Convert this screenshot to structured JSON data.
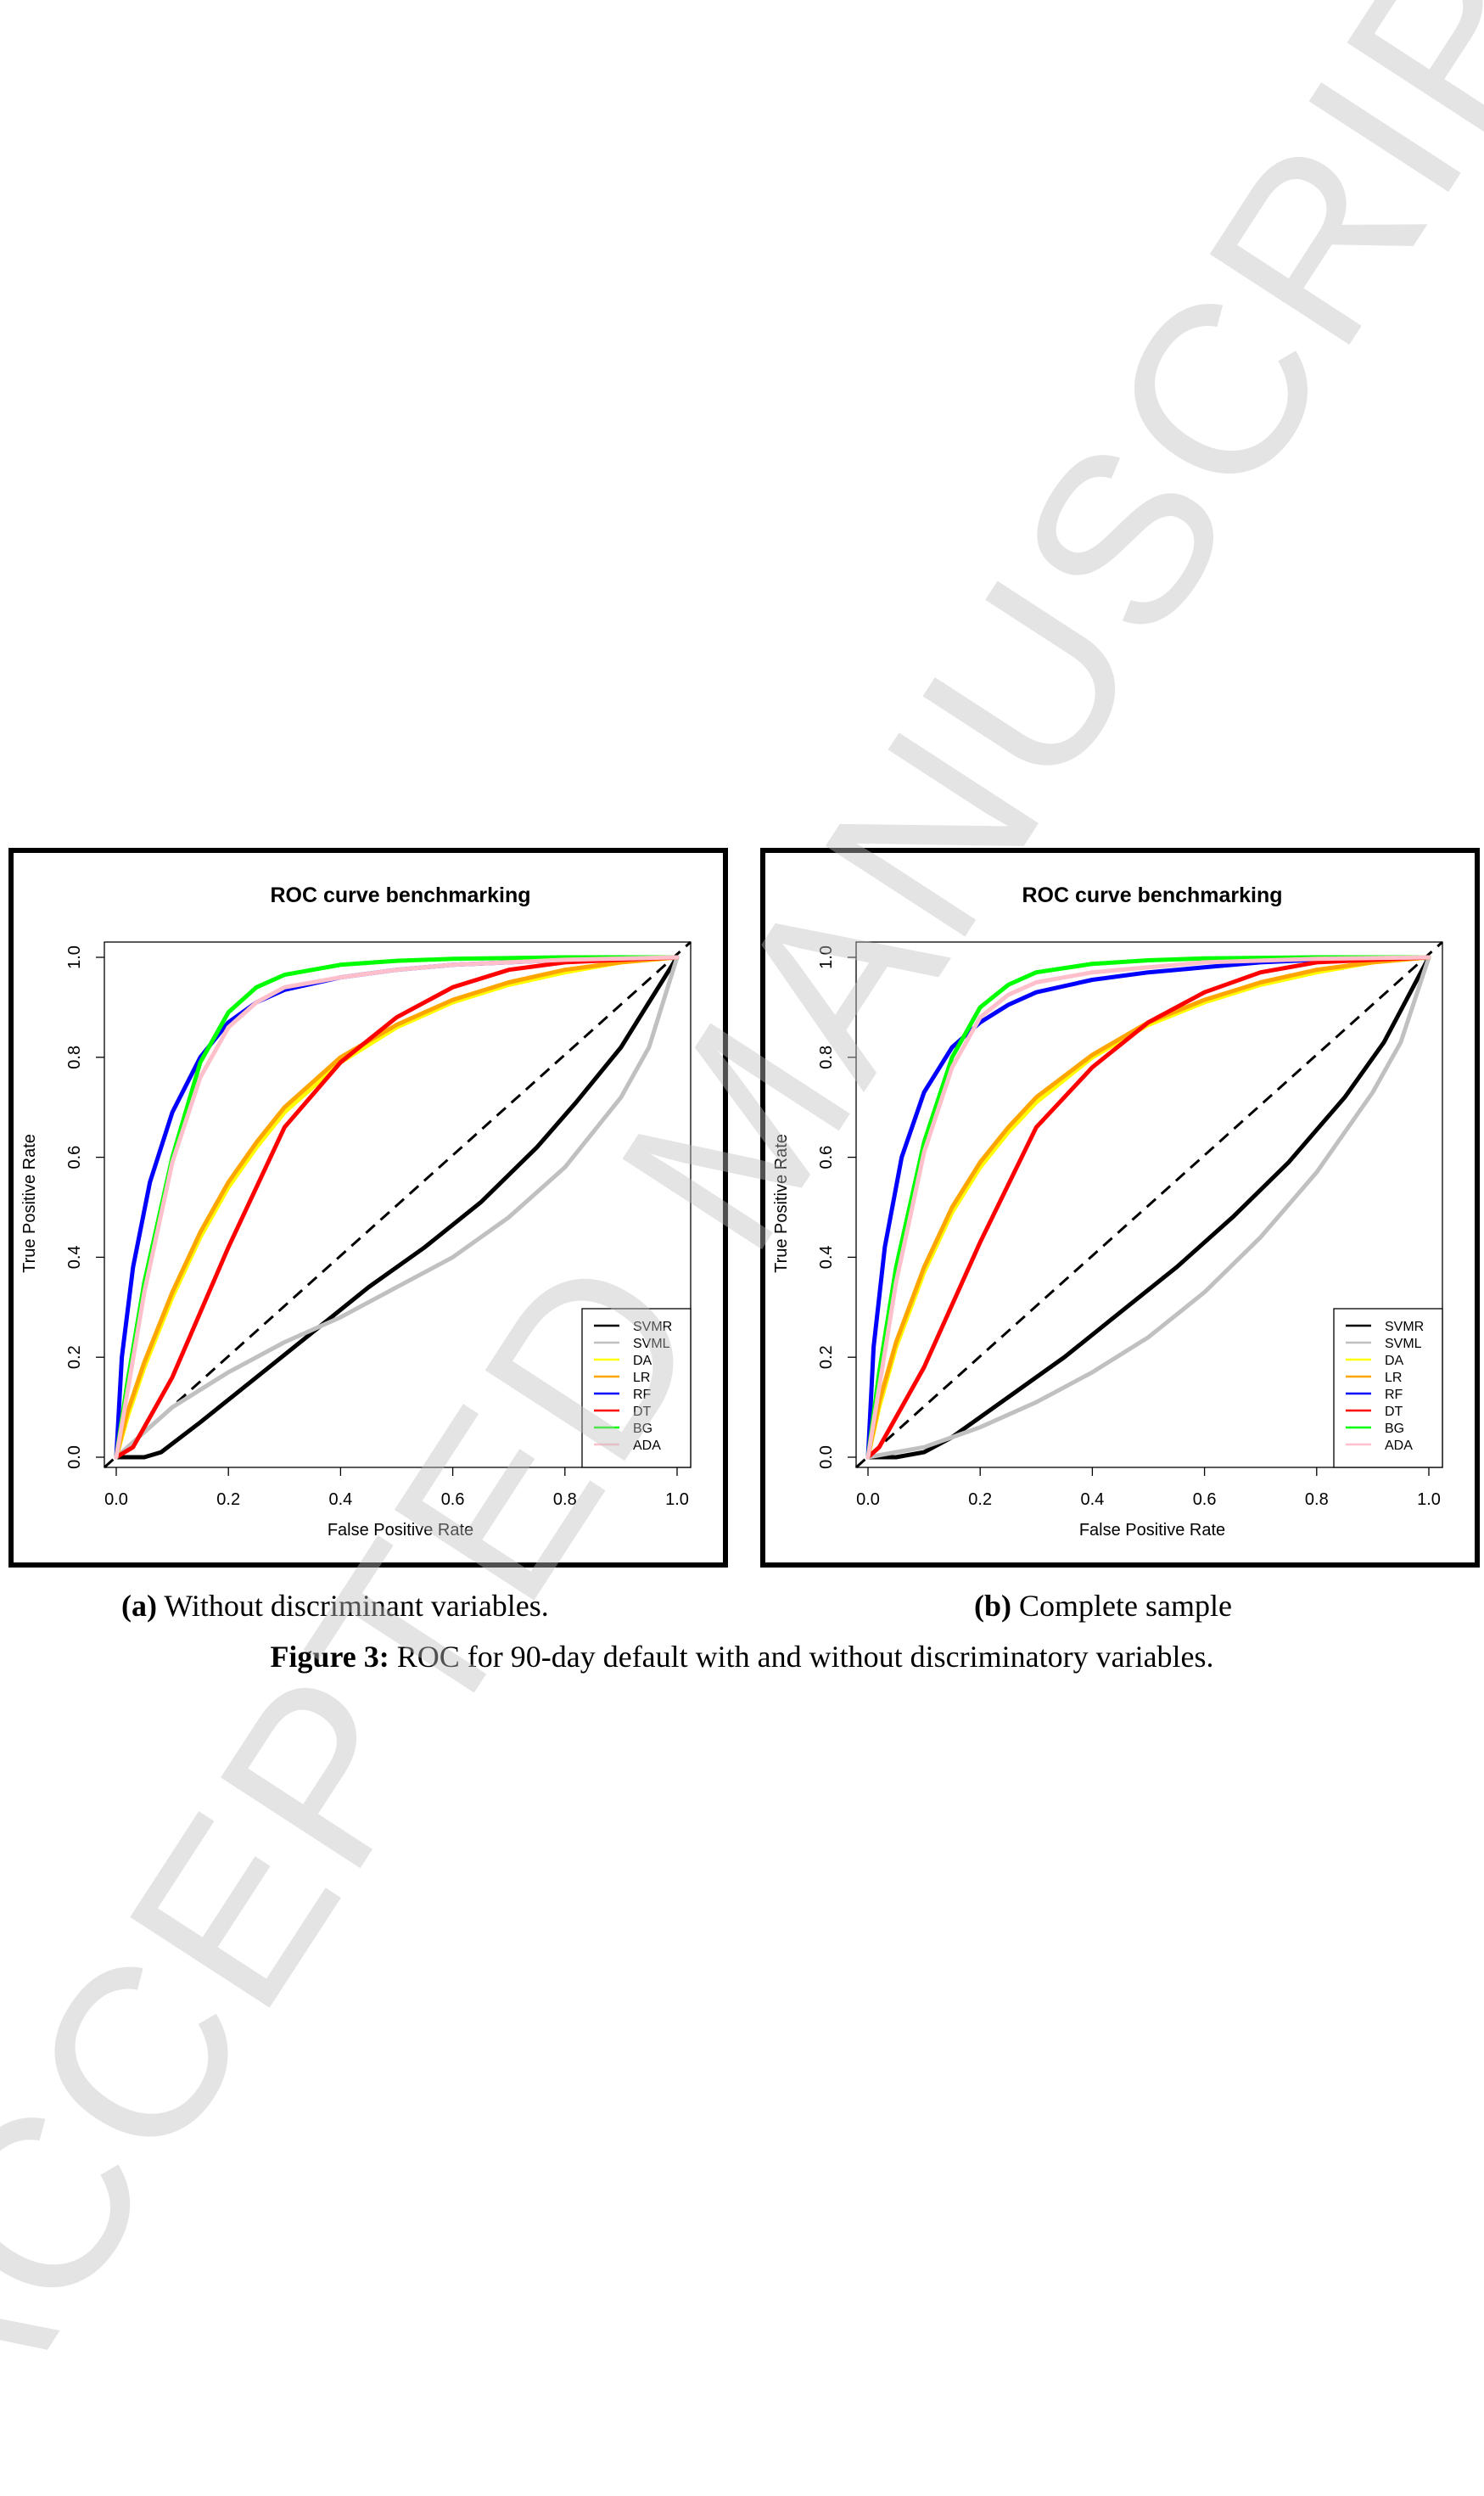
{
  "watermark": "ACCEPTED MANUSCRIPT",
  "captions": {
    "a_label": "(a)",
    "a_text": "Without discriminant variables.",
    "b_label": "(b)",
    "b_text": "Complete sample",
    "figure_label": "Figure 3:",
    "figure_text": "ROC for 90-day default with and without discriminatory variables."
  },
  "legend_colors": {
    "SVMR": "#000000",
    "SVML": "#c0c0c0",
    "DA": "#ffff00",
    "LR": "#ffa500",
    "RF": "#0000ff",
    "DT": "#ff0000",
    "BG": "#00ff00",
    "ADA": "#ffc0cb"
  },
  "chart_data": [
    {
      "type": "line",
      "title": "ROC curve benchmarking",
      "xlabel": "False Positive Rate",
      "ylabel": "True Positive Rate",
      "xlim": [
        0,
        1
      ],
      "ylim": [
        0,
        1
      ],
      "xticks": [
        "0.0",
        "0.2",
        "0.4",
        "0.6",
        "0.8",
        "1.0"
      ],
      "yticks": [
        "0.0",
        "0.2",
        "0.4",
        "0.6",
        "0.8",
        "1.0"
      ],
      "grid": false,
      "legend_position": "bottom-right",
      "series": [
        {
          "name": "SVMR",
          "color": "#000000",
          "x": [
            0,
            0.05,
            0.08,
            0.15,
            0.25,
            0.35,
            0.45,
            0.55,
            0.65,
            0.75,
            0.82,
            0.9,
            0.95,
            1
          ],
          "y": [
            0,
            0,
            0.01,
            0.07,
            0.16,
            0.25,
            0.34,
            0.42,
            0.51,
            0.62,
            0.71,
            0.82,
            0.91,
            1
          ]
        },
        {
          "name": "SVML",
          "color": "#c0c0c0",
          "x": [
            0,
            0.05,
            0.1,
            0.2,
            0.3,
            0.4,
            0.5,
            0.6,
            0.7,
            0.8,
            0.9,
            0.95,
            1
          ],
          "y": [
            0,
            0.05,
            0.1,
            0.17,
            0.23,
            0.28,
            0.34,
            0.4,
            0.48,
            0.58,
            0.72,
            0.82,
            1
          ]
        },
        {
          "name": "DA",
          "color": "#ffff00",
          "x": [
            0,
            0.02,
            0.05,
            0.1,
            0.15,
            0.2,
            0.25,
            0.3,
            0.4,
            0.5,
            0.6,
            0.7,
            0.8,
            0.9,
            1
          ],
          "y": [
            0,
            0.08,
            0.18,
            0.32,
            0.44,
            0.54,
            0.62,
            0.69,
            0.79,
            0.86,
            0.91,
            0.945,
            0.97,
            0.99,
            1
          ]
        },
        {
          "name": "LR",
          "color": "#ffa500",
          "x": [
            0,
            0.02,
            0.05,
            0.1,
            0.15,
            0.2,
            0.25,
            0.3,
            0.4,
            0.5,
            0.6,
            0.7,
            0.8,
            0.9,
            1
          ],
          "y": [
            0,
            0.09,
            0.19,
            0.33,
            0.45,
            0.55,
            0.63,
            0.7,
            0.8,
            0.865,
            0.915,
            0.95,
            0.975,
            0.99,
            1
          ]
        },
        {
          "name": "RF",
          "color": "#0000ff",
          "x": [
            0,
            0.01,
            0.03,
            0.06,
            0.1,
            0.15,
            0.2,
            0.25,
            0.3,
            0.4,
            0.5,
            0.6,
            0.7,
            0.8,
            1
          ],
          "y": [
            0,
            0.2,
            0.38,
            0.55,
            0.69,
            0.8,
            0.87,
            0.91,
            0.935,
            0.96,
            0.975,
            0.985,
            0.99,
            0.995,
            1
          ]
        },
        {
          "name": "DT",
          "color": "#ff0000",
          "x": [
            0,
            0.03,
            0.06,
            0.1,
            0.2,
            0.3,
            0.4,
            0.5,
            0.6,
            0.7,
            0.8,
            0.9,
            1
          ],
          "y": [
            0,
            0.02,
            0.08,
            0.16,
            0.42,
            0.66,
            0.79,
            0.88,
            0.94,
            0.975,
            0.99,
            0.995,
            1
          ]
        },
        {
          "name": "BG",
          "color": "#00ff00",
          "x": [
            0,
            0.02,
            0.05,
            0.1,
            0.15,
            0.2,
            0.25,
            0.3,
            0.4,
            0.5,
            0.6,
            0.8,
            1
          ],
          "y": [
            0,
            0.15,
            0.35,
            0.6,
            0.79,
            0.89,
            0.94,
            0.965,
            0.985,
            0.993,
            0.997,
            1,
            1
          ]
        },
        {
          "name": "ADA",
          "color": "#ffc0cb",
          "x": [
            0,
            0.02,
            0.05,
            0.1,
            0.15,
            0.2,
            0.25,
            0.3,
            0.4,
            0.5,
            0.6,
            0.8,
            1
          ],
          "y": [
            0,
            0.13,
            0.33,
            0.59,
            0.76,
            0.86,
            0.91,
            0.94,
            0.96,
            0.975,
            0.985,
            0.995,
            1
          ]
        }
      ]
    },
    {
      "type": "line",
      "title": "ROC curve benchmarking",
      "xlabel": "False Positive Rate",
      "ylabel": "True Positive Rate",
      "xlim": [
        0,
        1
      ],
      "ylim": [
        0,
        1
      ],
      "xticks": [
        "0.0",
        "0.2",
        "0.4",
        "0.6",
        "0.8",
        "1.0"
      ],
      "yticks": [
        "0.0",
        "0.2",
        "0.4",
        "0.6",
        "0.8",
        "1.0"
      ],
      "grid": false,
      "legend_position": "bottom-right",
      "series": [
        {
          "name": "SVMR",
          "color": "#000000",
          "x": [
            0,
            0.05,
            0.1,
            0.15,
            0.25,
            0.35,
            0.45,
            0.55,
            0.65,
            0.75,
            0.85,
            0.92,
            1
          ],
          "y": [
            0,
            0,
            0.01,
            0.04,
            0.12,
            0.2,
            0.29,
            0.38,
            0.48,
            0.59,
            0.72,
            0.83,
            1
          ]
        },
        {
          "name": "SVML",
          "color": "#c0c0c0",
          "x": [
            0,
            0.1,
            0.2,
            0.3,
            0.4,
            0.5,
            0.6,
            0.7,
            0.8,
            0.9,
            0.95,
            1
          ],
          "y": [
            0,
            0.02,
            0.06,
            0.11,
            0.17,
            0.24,
            0.33,
            0.44,
            0.57,
            0.73,
            0.83,
            1
          ]
        },
        {
          "name": "DA",
          "color": "#ffff00",
          "x": [
            0,
            0.02,
            0.05,
            0.1,
            0.15,
            0.2,
            0.25,
            0.3,
            0.4,
            0.5,
            0.6,
            0.7,
            0.8,
            0.9,
            1
          ],
          "y": [
            0,
            0.1,
            0.22,
            0.37,
            0.49,
            0.58,
            0.65,
            0.71,
            0.8,
            0.865,
            0.91,
            0.945,
            0.97,
            0.99,
            1
          ]
        },
        {
          "name": "LR",
          "color": "#ffa500",
          "x": [
            0,
            0.02,
            0.05,
            0.1,
            0.15,
            0.2,
            0.25,
            0.3,
            0.4,
            0.5,
            0.6,
            0.7,
            0.8,
            0.9,
            1
          ],
          "y": [
            0,
            0.11,
            0.23,
            0.38,
            0.5,
            0.59,
            0.66,
            0.72,
            0.805,
            0.87,
            0.915,
            0.95,
            0.975,
            0.99,
            1
          ]
        },
        {
          "name": "RF",
          "color": "#0000ff",
          "x": [
            0,
            0.01,
            0.03,
            0.06,
            0.1,
            0.15,
            0.2,
            0.25,
            0.3,
            0.4,
            0.5,
            0.6,
            0.7,
            0.8,
            1
          ],
          "y": [
            0,
            0.22,
            0.42,
            0.6,
            0.73,
            0.82,
            0.87,
            0.905,
            0.93,
            0.955,
            0.97,
            0.98,
            0.99,
            0.995,
            1
          ]
        },
        {
          "name": "DT",
          "color": "#ff0000",
          "x": [
            0,
            0.02,
            0.05,
            0.1,
            0.2,
            0.3,
            0.4,
            0.5,
            0.6,
            0.7,
            0.8,
            0.9,
            1
          ],
          "y": [
            0,
            0.02,
            0.08,
            0.18,
            0.43,
            0.66,
            0.78,
            0.87,
            0.93,
            0.97,
            0.99,
            0.995,
            1
          ]
        },
        {
          "name": "BG",
          "color": "#00ff00",
          "x": [
            0,
            0.02,
            0.05,
            0.1,
            0.15,
            0.2,
            0.25,
            0.3,
            0.4,
            0.5,
            0.6,
            0.8,
            1
          ],
          "y": [
            0,
            0.17,
            0.38,
            0.63,
            0.8,
            0.9,
            0.945,
            0.97,
            0.987,
            0.994,
            0.998,
            1,
            1
          ]
        },
        {
          "name": "ADA",
          "color": "#ffc0cb",
          "x": [
            0,
            0.02,
            0.05,
            0.1,
            0.15,
            0.2,
            0.25,
            0.3,
            0.4,
            0.5,
            0.6,
            0.8,
            1
          ],
          "y": [
            0,
            0.14,
            0.35,
            0.61,
            0.78,
            0.88,
            0.925,
            0.95,
            0.97,
            0.98,
            0.99,
            0.997,
            1
          ]
        }
      ]
    }
  ]
}
